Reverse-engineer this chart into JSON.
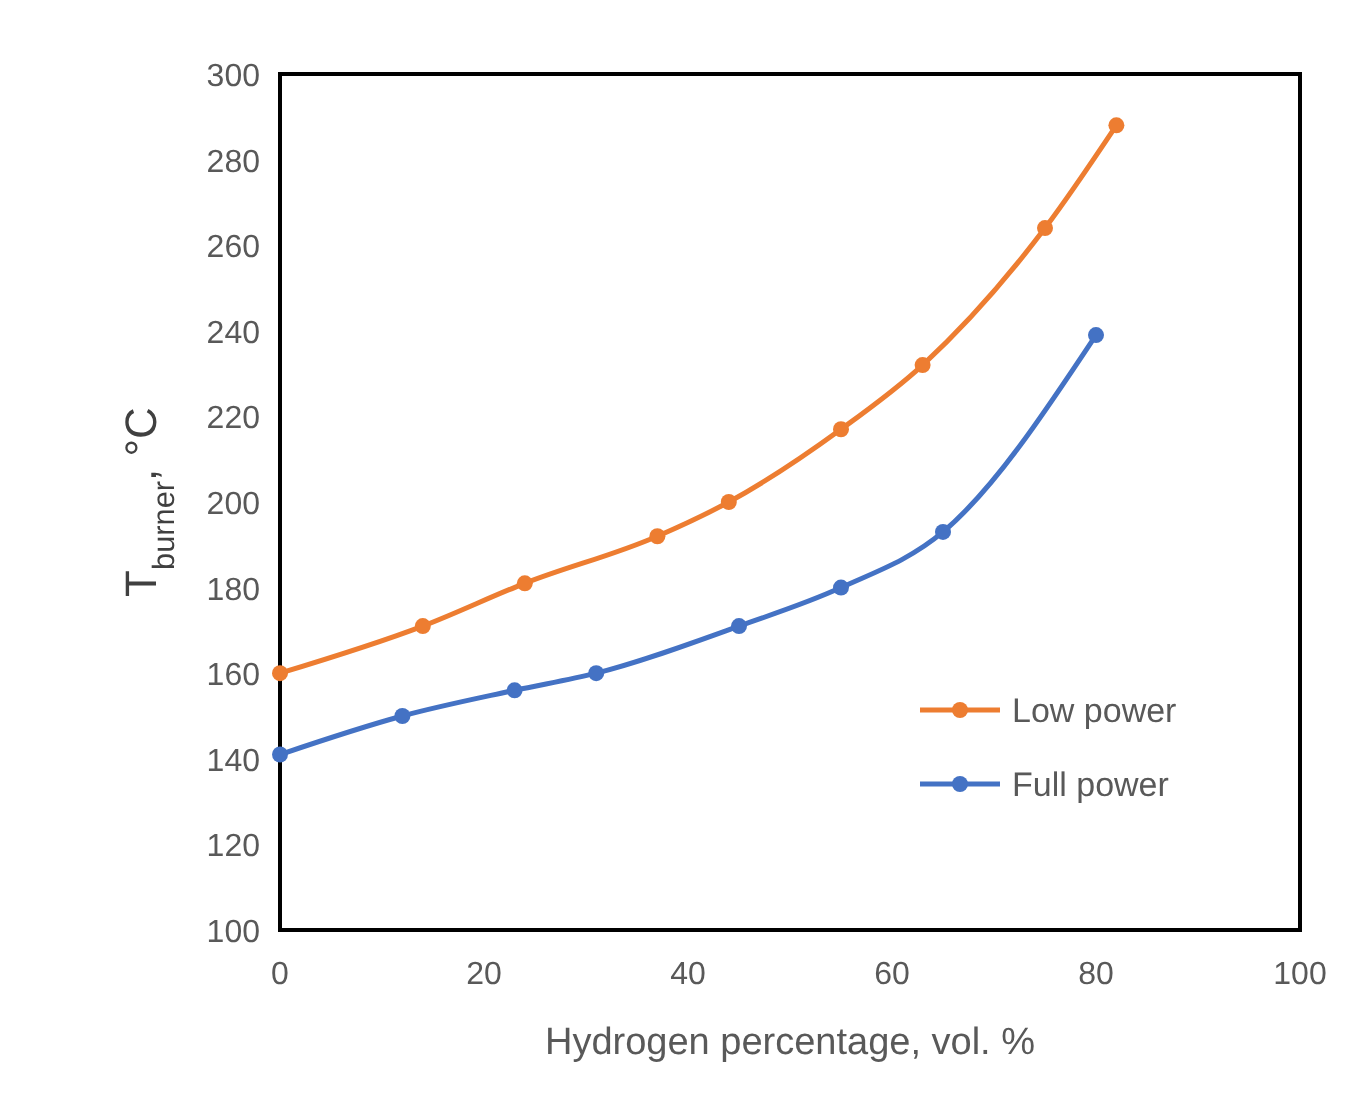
{
  "chart_data": {
    "type": "line",
    "xlabel": "Hydrogen percentage, vol. %",
    "ylabel": "T$_{burner}$, °C",
    "xlim": [
      0,
      100
    ],
    "xticks": [
      0,
      20,
      40,
      60,
      80,
      100
    ],
    "ylim": [
      100,
      300
    ],
    "yticks": [
      100,
      120,
      140,
      160,
      180,
      200,
      220,
      240,
      260,
      280,
      300
    ],
    "marker": "circle",
    "legend": "bottom right",
    "grid": false,
    "series": [
      {
        "name": "Low power",
        "color": "#ed7d31",
        "x": [
          0,
          14,
          24,
          37,
          44,
          55,
          63,
          75,
          82
        ],
        "values": [
          160,
          171,
          181,
          192,
          200,
          217,
          232,
          264,
          288
        ]
      },
      {
        "name": "Full power",
        "color": "#4472c4",
        "x": [
          0,
          12,
          23,
          31,
          45,
          55,
          65,
          80
        ],
        "values": [
          141,
          150,
          156,
          160,
          171,
          180,
          193,
          239
        ]
      }
    ]
  }
}
